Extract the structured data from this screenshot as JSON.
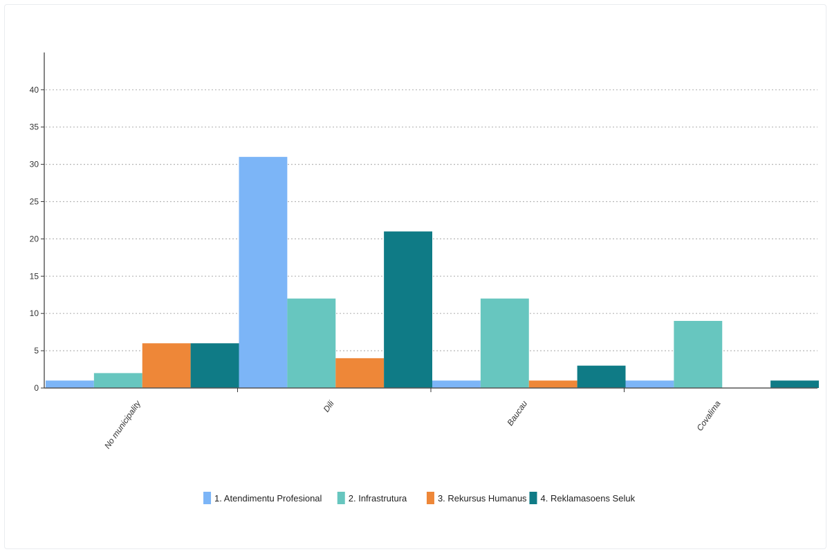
{
  "chart_data": {
    "type": "bar",
    "categories": [
      "No municipality",
      "Dili",
      "Baucau",
      "Covalima"
    ],
    "series": [
      {
        "name": "1. Atendimentu Profesional",
        "color": "#7cb5f7",
        "values": [
          1,
          31,
          1,
          1
        ]
      },
      {
        "name": "2. Infrastrutura",
        "color": "#67c6bf",
        "values": [
          2,
          12,
          12,
          9
        ]
      },
      {
        "name": "3. Rekursus Humanus",
        "color": "#ee8738",
        "values": [
          6,
          4,
          1,
          0
        ]
      },
      {
        "name": "4. Reklamasoens Seluk",
        "color": "#0f7b86",
        "values": [
          6,
          21,
          3,
          1
        ]
      }
    ],
    "yticks": [
      0,
      5,
      10,
      15,
      20,
      25,
      30,
      35,
      40
    ],
    "ylim": [
      0,
      45
    ],
    "grid": true,
    "legend_position": "bottom-center",
    "title": "",
    "xlabel": "",
    "ylabel": ""
  }
}
